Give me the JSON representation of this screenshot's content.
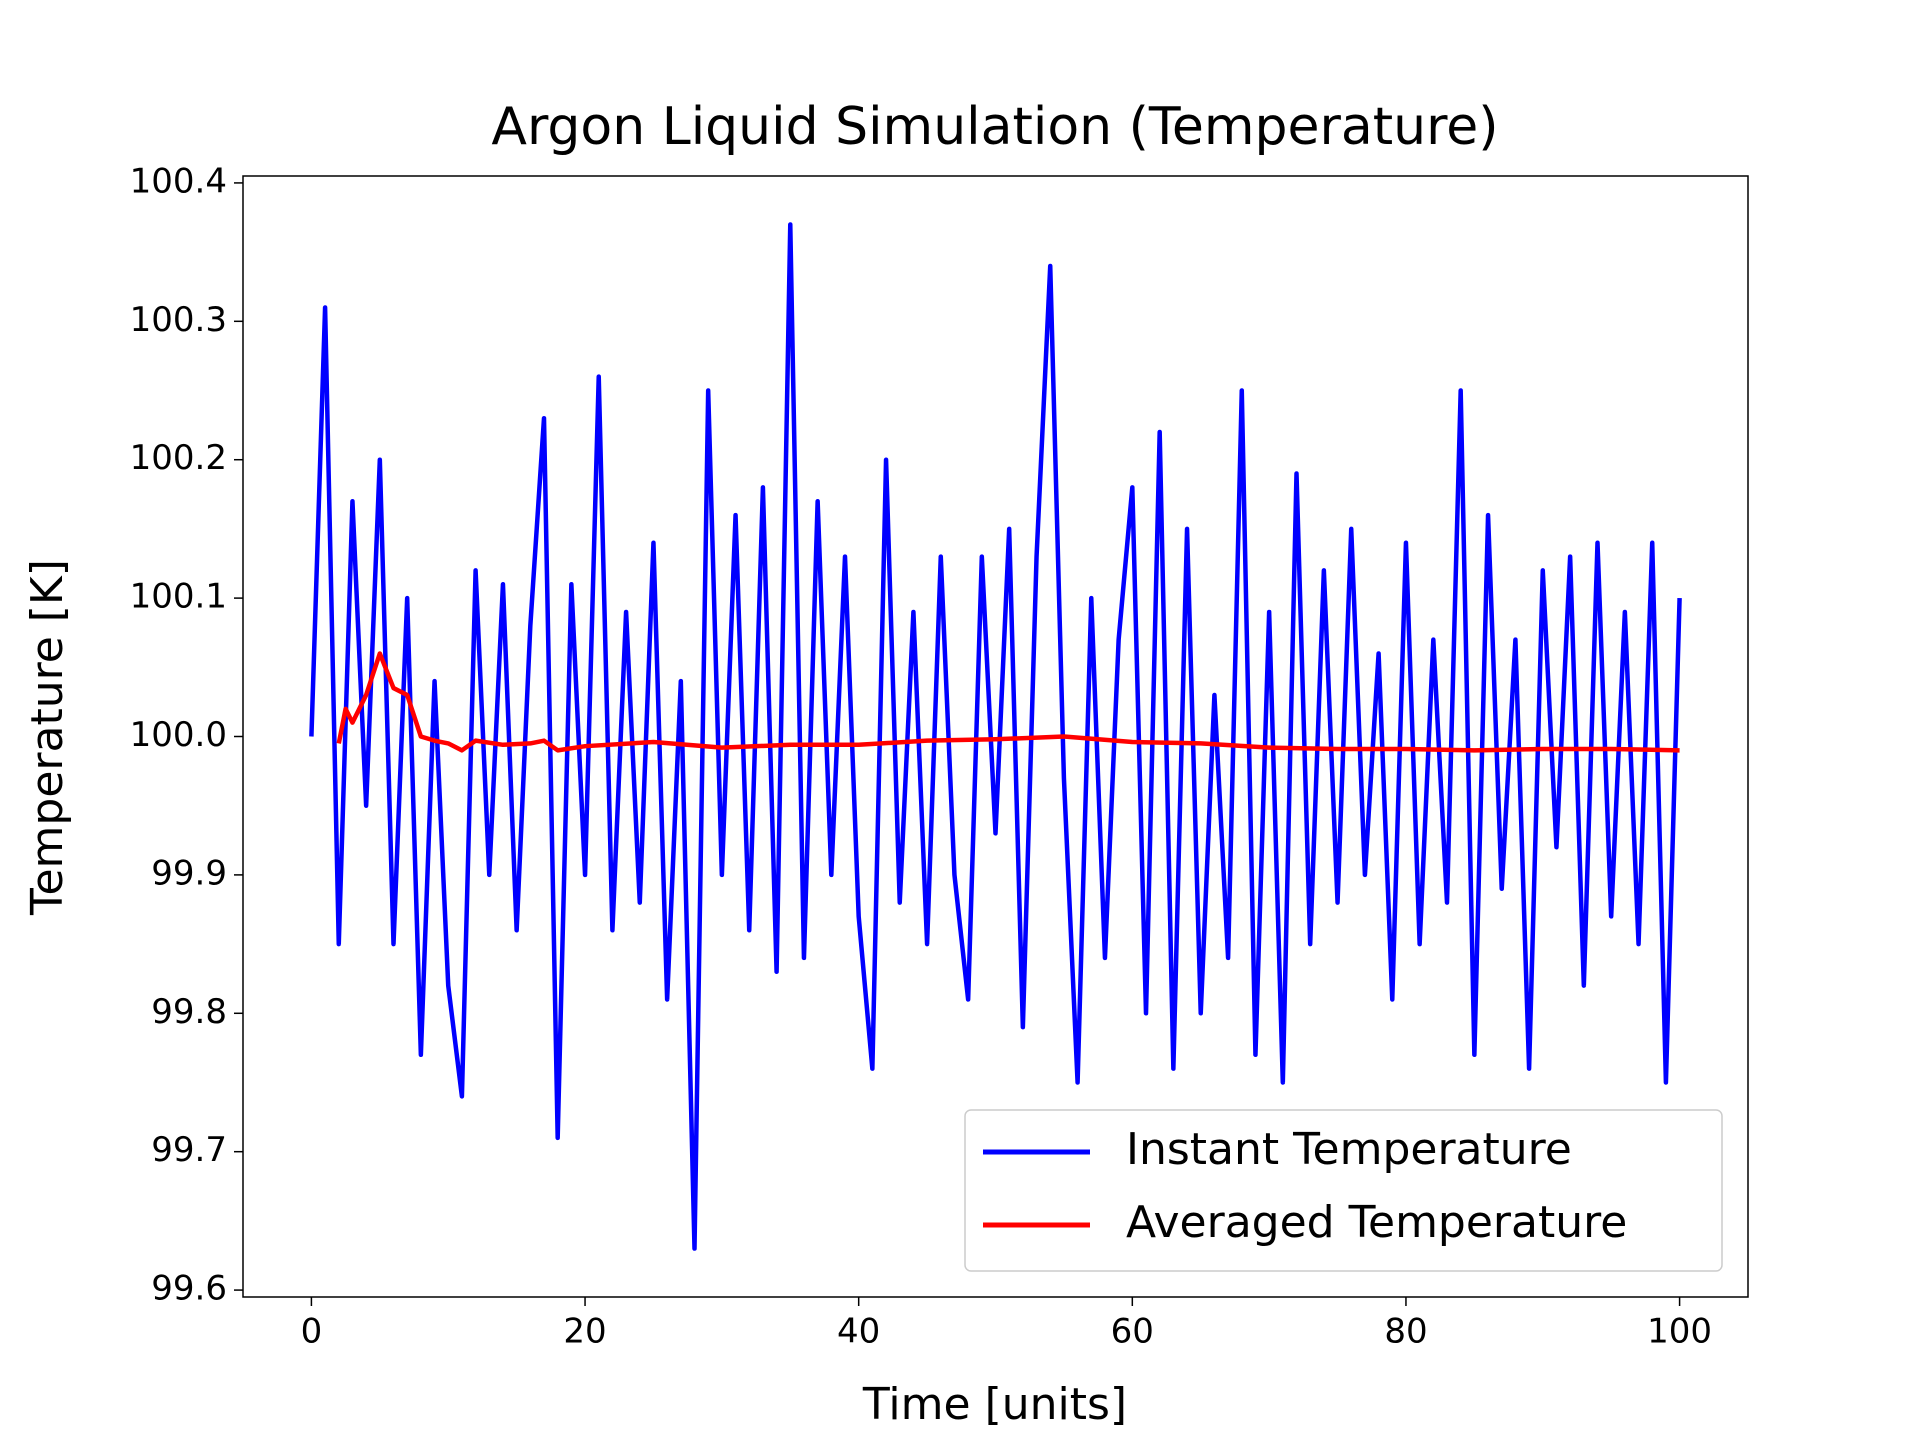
{
  "chart_data": {
    "type": "line",
    "title": "Argon Liquid Simulation (Temperature)",
    "xlabel": "Time [units]",
    "ylabel": "Temperature [K]",
    "xlim": [
      -5,
      105
    ],
    "xticks": [
      0,
      20,
      40,
      60,
      80,
      100
    ],
    "ylim": [
      99.595,
      100.405
    ],
    "yticks": [
      99.6,
      99.7,
      99.8,
      99.9,
      {
        "value": 100,
        "label": "100.0"
      },
      100.1,
      100.2,
      100.3,
      100.4
    ],
    "grid": false,
    "legend": "lower right",
    "series": [
      {
        "name": "Instant Temperature",
        "color": "#0000ff",
        "x": [
          0,
          1,
          2,
          3,
          4,
          5,
          6,
          7,
          8,
          9,
          10,
          11,
          12,
          13,
          14,
          15,
          16,
          17,
          18,
          19,
          20,
          21,
          22,
          23,
          24,
          25,
          26,
          27,
          28,
          29,
          30,
          31,
          32,
          33,
          34,
          35,
          36,
          37,
          38,
          39,
          40,
          41,
          42,
          43,
          44,
          45,
          46,
          47,
          48,
          49,
          50,
          51,
          52,
          53,
          54,
          55,
          56,
          57,
          58,
          59,
          60,
          61,
          62,
          63,
          64,
          65,
          66,
          67,
          68,
          69,
          70,
          71,
          72,
          73,
          74,
          75,
          76,
          77,
          78,
          79,
          80,
          81,
          82,
          83,
          84,
          85,
          86,
          87,
          88,
          89,
          90,
          91,
          92,
          93,
          94,
          95,
          96,
          97,
          98,
          99,
          100
        ],
        "values": [
          100.0,
          100.31,
          99.85,
          100.17,
          99.95,
          100.2,
          99.85,
          100.1,
          99.77,
          100.04,
          99.82,
          99.74,
          100.12,
          99.9,
          100.11,
          99.86,
          100.08,
          100.23,
          99.71,
          100.11,
          99.9,
          100.26,
          99.86,
          100.09,
          99.88,
          100.14,
          99.81,
          100.04,
          99.63,
          100.25,
          99.9,
          100.16,
          99.86,
          100.18,
          99.83,
          100.37,
          99.84,
          100.17,
          99.9,
          100.13,
          99.87,
          99.76,
          100.2,
          99.88,
          100.09,
          99.85,
          100.13,
          99.9,
          99.81,
          100.13,
          99.93,
          100.15,
          99.79,
          100.13,
          100.34,
          99.97,
          99.75,
          100.1,
          99.84,
          100.07,
          100.18,
          99.8,
          100.22,
          99.76,
          100.15,
          99.8,
          100.03,
          99.84,
          100.25,
          99.77,
          100.09,
          99.75,
          100.19,
          99.85,
          100.12,
          99.88,
          100.15,
          99.9,
          100.06,
          99.81,
          100.14,
          99.85,
          100.07,
          99.88,
          100.25,
          99.77,
          100.16,
          99.89,
          100.07,
          99.76,
          100.12,
          99.92,
          100.13,
          99.82,
          100.14,
          99.87,
          100.09,
          99.85,
          100.14,
          99.75,
          100.1
        ]
      },
      {
        "name": "Averaged Temperature",
        "color": "#ff0000",
        "x": [
          2,
          2.5,
          3,
          4,
          5,
          6,
          7,
          8,
          9,
          10,
          11,
          12,
          14,
          16,
          17,
          18,
          20,
          25,
          30,
          35,
          40,
          45,
          50,
          55,
          60,
          65,
          70,
          75,
          80,
          85,
          90,
          95,
          100
        ],
        "values": [
          99.995,
          100.02,
          100.01,
          100.03,
          100.06,
          100.035,
          100.03,
          100.0,
          99.997,
          99.995,
          99.99,
          99.997,
          99.994,
          99.995,
          99.997,
          99.99,
          99.993,
          99.996,
          99.992,
          99.994,
          99.994,
          99.997,
          99.998,
          100.0,
          99.996,
          99.995,
          99.992,
          99.991,
          99.991,
          99.99,
          99.991,
          99.991,
          99.99
        ]
      }
    ]
  }
}
